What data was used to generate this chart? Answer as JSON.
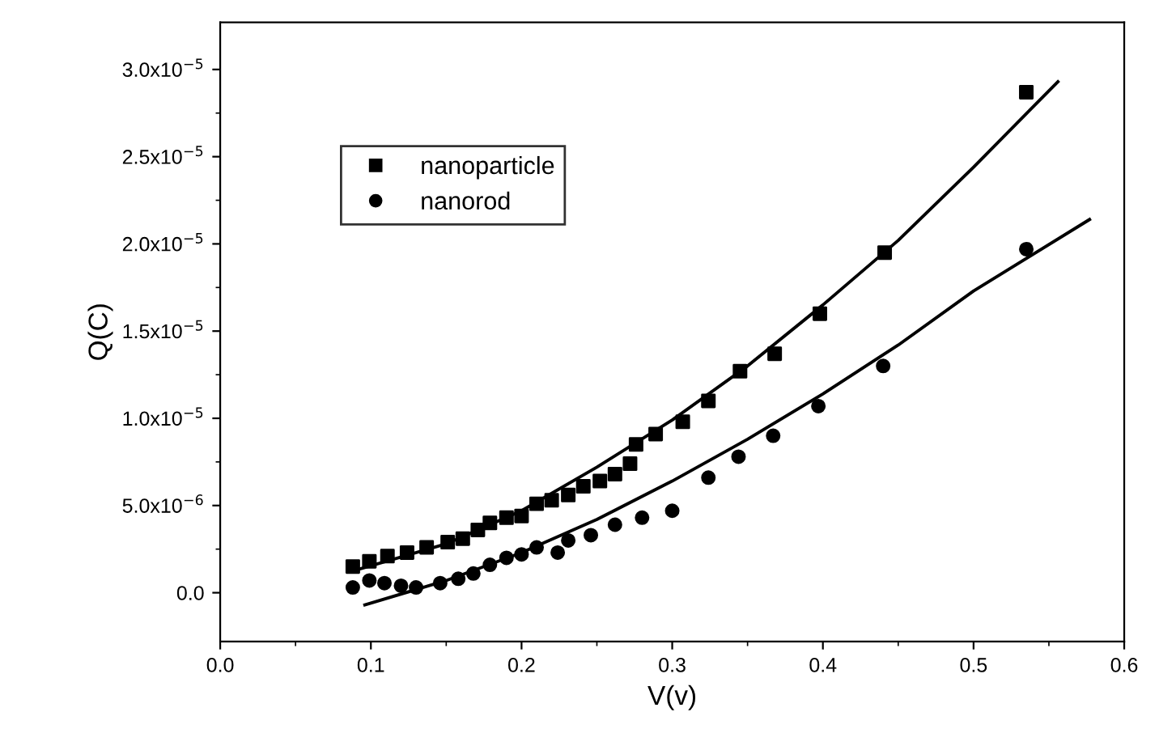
{
  "chart_data": {
    "type": "scatter",
    "xlabel": "V(v)",
    "ylabel": "Q(C)",
    "xlim": [
      0,
      0.6
    ],
    "ylim": [
      -2.8e-06,
      3.27e-05
    ],
    "xticks": [
      {
        "value": 0,
        "label": "0.0"
      },
      0.1,
      0.2,
      0.3,
      0.4,
      0.5,
      0.6
    ],
    "yticks": [
      {
        "value": 0,
        "label": "0.0"
      },
      {
        "value": 5e-06,
        "label": "5.0x10$^{−6}$"
      },
      {
        "value": 1e-05,
        "label": "1.0x10$^{−5}$"
      },
      {
        "value": 1.5e-05,
        "label": "1.5x10$^{−5}$"
      },
      {
        "value": 2e-05,
        "label": "2.0x10$^{−5}$"
      },
      {
        "value": 2.5e-05,
        "label": "2.5x10$^{−5}$"
      },
      {
        "value": 3e-05,
        "label": "3.0x10$^{−5}$"
      }
    ],
    "legend": "top left",
    "grid": false,
    "series": [
      {
        "name": "nanoparticle",
        "marker": "square",
        "color": "#000000",
        "x": [
          0.088,
          0.099,
          0.111,
          0.124,
          0.137,
          0.151,
          0.161,
          0.171,
          0.179,
          0.19,
          0.2,
          0.21,
          0.22,
          0.231,
          0.241,
          0.252,
          0.262,
          0.272,
          0.276,
          0.289,
          0.307,
          0.324,
          0.345,
          0.368,
          0.398,
          0.441,
          0.535
        ],
        "values": [
          1.5e-06,
          1.8e-06,
          2.1e-06,
          2.3e-06,
          2.6e-06,
          2.9e-06,
          3.1e-06,
          3.6e-06,
          4e-06,
          4.3e-06,
          4.4e-06,
          5.1e-06,
          5.3e-06,
          5.6e-06,
          6.1e-06,
          6.4e-06,
          6.8e-06,
          7.4e-06,
          8.5e-06,
          9.1e-06,
          9.8e-06,
          1.1e-05,
          1.27e-05,
          1.37e-05,
          1.6e-05,
          1.95e-05,
          2.87e-05
        ]
      },
      {
        "name": "nanorod",
        "marker": "circle",
        "color": "#000000",
        "x": [
          0.088,
          0.099,
          0.109,
          0.12,
          0.13,
          0.146,
          0.158,
          0.168,
          0.179,
          0.19,
          0.2,
          0.21,
          0.224,
          0.231,
          0.246,
          0.262,
          0.28,
          0.3,
          0.324,
          0.344,
          0.367,
          0.397,
          0.44,
          0.535
        ],
        "values": [
          3e-07,
          7e-07,
          5.5e-07,
          4e-07,
          3e-07,
          5.5e-07,
          8e-07,
          1.1e-06,
          1.6e-06,
          2e-06,
          2.2e-06,
          2.6e-06,
          2.3e-06,
          3e-06,
          3.3e-06,
          3.9e-06,
          4.3e-06,
          4.7e-06,
          6.6e-06,
          7.8e-06,
          9e-06,
          1.07e-05,
          1.3e-05,
          1.97e-05
        ]
      },
      {
        "type": "line",
        "marker": "none",
        "line_style": "solid",
        "color": "#000000",
        "x": [
          0.09,
          0.15,
          0.2,
          0.25,
          0.3,
          0.35,
          0.4,
          0.45,
          0.5,
          0.556
        ],
        "values": [
          1.3e-06,
          2.8e-06,
          4.7e-06,
          7.2e-06,
          9.9e-06,
          1.3e-05,
          1.65e-05,
          2.02e-05,
          2.44e-05,
          2.93e-05
        ]
      },
      {
        "type": "line",
        "marker": "none",
        "line_style": "solid",
        "color": "#000000",
        "x": [
          0.096,
          0.15,
          0.2,
          0.25,
          0.3,
          0.35,
          0.4,
          0.45,
          0.5,
          0.577
        ],
        "values": [
          -7e-07,
          7e-07,
          2.3e-06,
          4.2e-06,
          6.4e-06,
          8.8e-06,
          1.14e-05,
          1.42e-05,
          1.73e-05,
          2.14e-05
        ]
      }
    ]
  }
}
